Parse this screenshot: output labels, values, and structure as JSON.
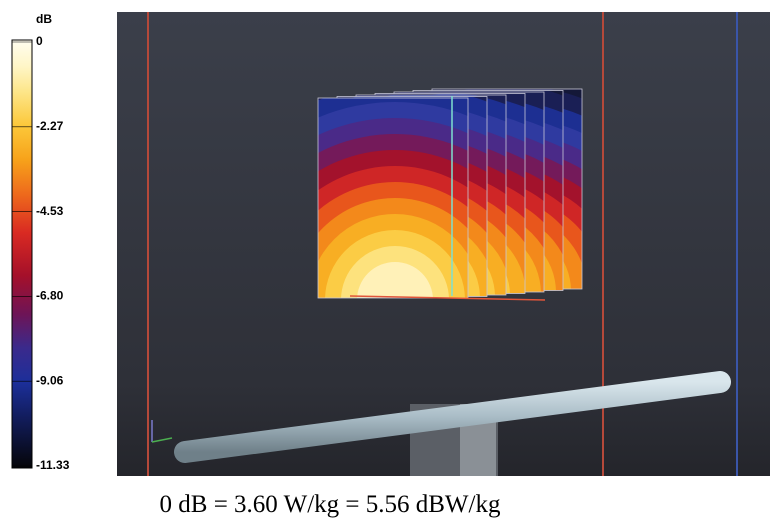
{
  "colorbar": {
    "unit": "dB",
    "labels": [
      "0",
      "-2.27",
      "-4.53",
      "-6.80",
      "-9.06",
      "-11.33"
    ]
  },
  "caption": "0 dB = 3.60 W/kg = 5.56 dBW/kg"
}
